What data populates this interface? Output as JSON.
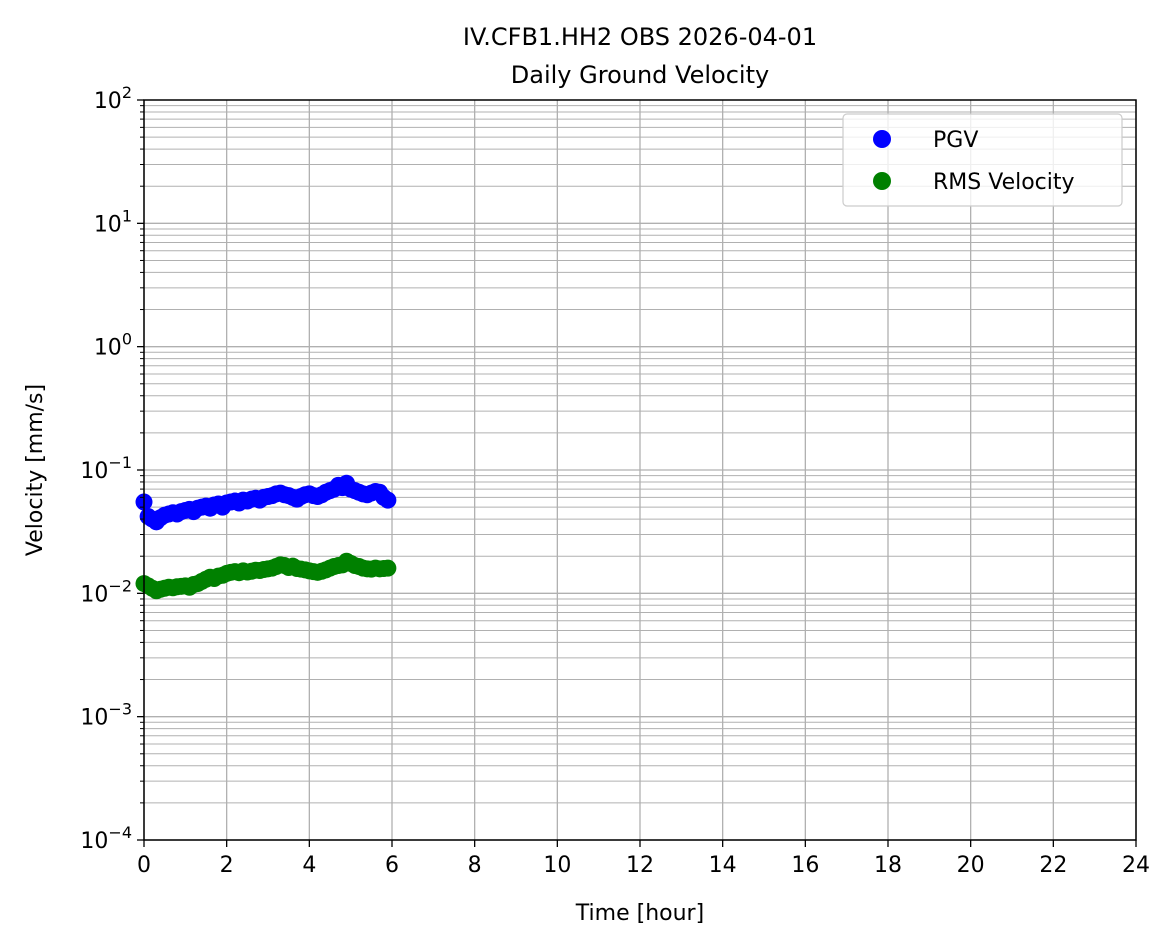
{
  "chart_data": {
    "type": "scatter",
    "title": "IV.CFB1.HH2 OBS 2026-04-01",
    "subtitle": "Daily Ground Velocity",
    "xlabel": "Time [hour]",
    "ylabel": "Velocity [mm/s]",
    "xlim": [
      0,
      24
    ],
    "ylim": [
      0.0001,
      100
    ],
    "y_scale": "log",
    "grid": true,
    "legend_position": "top-right",
    "x_ticks": [
      "0",
      "2",
      "4",
      "6",
      "8",
      "10",
      "12",
      "14",
      "16",
      "18",
      "20",
      "22",
      "24"
    ],
    "y_ticks": [
      {
        "value": 0.0001,
        "base": "10",
        "exp": "−4"
      },
      {
        "value": 0.001,
        "base": "10",
        "exp": "−3"
      },
      {
        "value": 0.01,
        "base": "10",
        "exp": "−2"
      },
      {
        "value": 0.1,
        "base": "10",
        "exp": "−1"
      },
      {
        "value": 1,
        "base": "10",
        "exp": "0"
      },
      {
        "value": 10,
        "base": "10",
        "exp": "1"
      },
      {
        "value": 100,
        "base": "10",
        "exp": "2"
      }
    ],
    "series": [
      {
        "name": "PGV",
        "color": "#0000ff",
        "x": [
          0.0,
          0.1,
          0.2,
          0.3,
          0.4,
          0.5,
          0.6,
          0.7,
          0.8,
          0.9,
          1.0,
          1.1,
          1.2,
          1.3,
          1.4,
          1.5,
          1.6,
          1.7,
          1.8,
          1.9,
          2.0,
          2.1,
          2.2,
          2.3,
          2.4,
          2.5,
          2.6,
          2.7,
          2.8,
          2.9,
          3.0,
          3.1,
          3.2,
          3.3,
          3.4,
          3.5,
          3.6,
          3.7,
          3.8,
          3.9,
          4.0,
          4.1,
          4.2,
          4.3,
          4.4,
          4.5,
          4.6,
          4.7,
          4.8,
          4.9,
          5.0,
          5.1,
          5.2,
          5.3,
          5.4,
          5.5,
          5.6,
          5.7,
          5.8,
          5.9
        ],
        "y": [
          0.055,
          0.042,
          0.04,
          0.038,
          0.041,
          0.043,
          0.044,
          0.045,
          0.044,
          0.046,
          0.047,
          0.048,
          0.046,
          0.049,
          0.05,
          0.051,
          0.049,
          0.052,
          0.053,
          0.05,
          0.054,
          0.055,
          0.056,
          0.054,
          0.057,
          0.056,
          0.058,
          0.059,
          0.057,
          0.06,
          0.061,
          0.062,
          0.064,
          0.065,
          0.063,
          0.062,
          0.06,
          0.058,
          0.061,
          0.063,
          0.064,
          0.062,
          0.061,
          0.063,
          0.066,
          0.068,
          0.07,
          0.075,
          0.072,
          0.078,
          0.07,
          0.068,
          0.066,
          0.064,
          0.063,
          0.065,
          0.067,
          0.066,
          0.06,
          0.057
        ]
      },
      {
        "name": "RMS Velocity",
        "color": "#008000",
        "x": [
          0.0,
          0.1,
          0.2,
          0.3,
          0.4,
          0.5,
          0.6,
          0.7,
          0.8,
          0.9,
          1.0,
          1.1,
          1.2,
          1.3,
          1.4,
          1.5,
          1.6,
          1.7,
          1.8,
          1.9,
          2.0,
          2.1,
          2.2,
          2.3,
          2.4,
          2.5,
          2.6,
          2.7,
          2.8,
          2.9,
          3.0,
          3.1,
          3.2,
          3.3,
          3.4,
          3.5,
          3.6,
          3.7,
          3.8,
          3.9,
          4.0,
          4.1,
          4.2,
          4.3,
          4.4,
          4.5,
          4.6,
          4.7,
          4.8,
          4.9,
          5.0,
          5.1,
          5.2,
          5.3,
          5.4,
          5.5,
          5.6,
          5.7,
          5.8,
          5.9
        ],
        "y": [
          0.012,
          0.0115,
          0.011,
          0.0105,
          0.0108,
          0.011,
          0.0112,
          0.0111,
          0.0113,
          0.0114,
          0.0115,
          0.0112,
          0.0118,
          0.012,
          0.0125,
          0.013,
          0.0135,
          0.0132,
          0.0138,
          0.014,
          0.0145,
          0.0148,
          0.015,
          0.0147,
          0.0152,
          0.0149,
          0.0151,
          0.0154,
          0.0153,
          0.0156,
          0.0158,
          0.016,
          0.0165,
          0.017,
          0.0168,
          0.0162,
          0.0166,
          0.0159,
          0.0157,
          0.0155,
          0.0152,
          0.015,
          0.0148,
          0.0151,
          0.0155,
          0.016,
          0.0165,
          0.0168,
          0.017,
          0.0182,
          0.0175,
          0.0168,
          0.0165,
          0.016,
          0.0158,
          0.0157,
          0.016,
          0.0158,
          0.0159,
          0.016
        ]
      }
    ]
  }
}
